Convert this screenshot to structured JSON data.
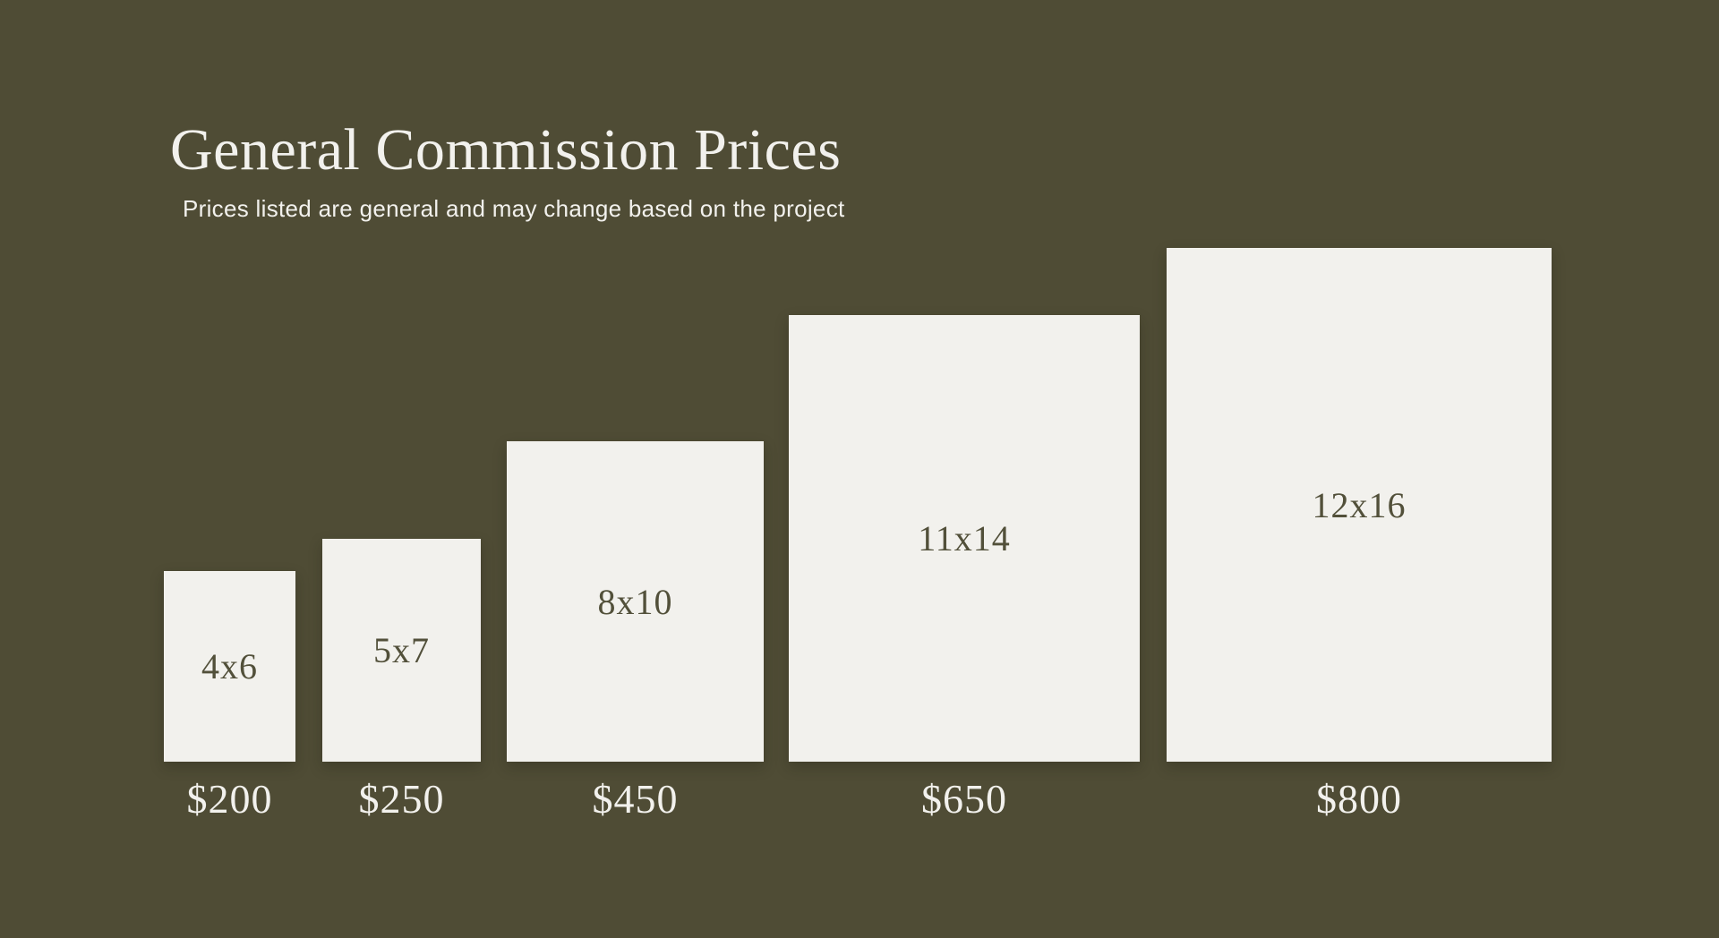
{
  "colors": {
    "background": "#4F4C35",
    "card": "#F2F1ED",
    "text_light": "#F2F1ED",
    "text_dark": "#52503A"
  },
  "header": {
    "title": "General Commission Prices",
    "subtitle": "Prices listed are general and may change based on the project"
  },
  "chart_data": {
    "type": "bar",
    "title": "General Commission Prices",
    "subtitle": "Prices listed are general and may change based on the project",
    "categories": [
      "4x6",
      "5x7",
      "8x10",
      "11x14",
      "12x16"
    ],
    "values": [
      200,
      250,
      450,
      650,
      800
    ],
    "value_labels": [
      "$200",
      "$250",
      "$450",
      "$650",
      "$800"
    ],
    "xlabel": "",
    "ylabel": "",
    "legend": "none",
    "grid": false,
    "layout_hint": "bars bottom-aligned, widths and heights proportional to print dimensions in inches (~36 px per inch)",
    "bars": [
      {
        "size_label": "4x6",
        "price_label": "$200",
        "value": 200,
        "width_in": 4,
        "height_in": 6
      },
      {
        "size_label": "5x7",
        "price_label": "$250",
        "value": 250,
        "width_in": 5,
        "height_in": 7
      },
      {
        "size_label": "8x10",
        "price_label": "$450",
        "value": 450,
        "width_in": 8,
        "height_in": 10
      },
      {
        "size_label": "11x14",
        "price_label": "$650",
        "value": 650,
        "width_in": 11,
        "height_in": 14
      },
      {
        "size_label": "12x16",
        "price_label": "$800",
        "value": 800,
        "width_in": 12,
        "height_in": 16
      }
    ]
  }
}
